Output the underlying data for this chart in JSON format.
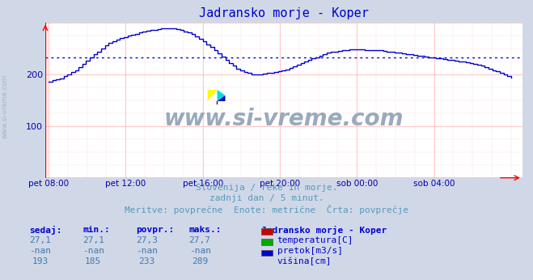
{
  "title": "Jadransko morje - Koper",
  "title_color": "#0000cc",
  "bg_color": "#d0d8e8",
  "plot_bg_color": "#ffffff",
  "line_color": "#0000cc",
  "avg_line_color": "#0000cc",
  "grid_color_major": "#ffaaaa",
  "grid_color_minor": "#ffdddd",
  "xlabel_color": "#0000aa",
  "ylabel_color": "#0000aa",
  "ymin": 0,
  "ymax": 300,
  "yticks": [
    100,
    200
  ],
  "avg_value": 233,
  "xtick_labels": [
    "pet 08:00",
    "pet 12:00",
    "pet 16:00",
    "pet 20:00",
    "sob 00:00",
    "sob 04:00"
  ],
  "subtitle1": "Slovenija / reke in morje.",
  "subtitle2": "zadnji dan / 5 minut.",
  "subtitle3": "Meritve: povprečne  Enote: metrične  Črta: povprečje",
  "subtitle_color": "#5599bb",
  "table_header_color": "#0000cc",
  "table_value_color": "#4477aa",
  "watermark_text": "www.si-vreme.com",
  "watermark_color": "#99aabb",
  "legend_title": "Jadransko morje - Koper",
  "legend_items": [
    {
      "label": "temperatura[C]",
      "color": "#cc0000"
    },
    {
      "label": "pretok[m3/s]",
      "color": "#00aa00"
    },
    {
      "label": "višina[cm]",
      "color": "#0000cc"
    }
  ],
  "table_cols": [
    "sedaj:",
    "min.:",
    "povpr.:",
    "maks.:"
  ],
  "table_rows": [
    [
      "27,1",
      "27,1",
      "27,3",
      "27,7"
    ],
    [
      "-nan",
      "-nan",
      "-nan",
      "-nan"
    ],
    [
      "193",
      "185",
      "233",
      "289"
    ]
  ],
  "y_data": [
    185,
    188,
    190,
    192,
    196,
    200,
    204,
    208,
    214,
    220,
    226,
    232,
    238,
    244,
    250,
    255,
    260,
    264,
    267,
    270,
    272,
    274,
    276,
    278,
    280,
    282,
    284,
    285,
    286,
    287,
    288,
    289,
    289,
    288,
    287,
    285,
    283,
    280,
    277,
    273,
    269,
    264,
    258,
    252,
    246,
    240,
    234,
    228,
    222,
    216,
    211,
    207,
    204,
    202,
    200,
    200,
    200,
    201,
    202,
    203,
    204,
    205,
    207,
    209,
    212,
    215,
    218,
    221,
    224,
    227,
    230,
    233,
    236,
    239,
    241,
    243,
    244,
    245,
    246,
    247,
    248,
    248,
    248,
    248,
    247,
    247,
    247,
    246,
    246,
    245,
    244,
    243,
    242,
    241,
    240,
    239,
    238,
    237,
    236,
    235,
    234,
    233,
    232,
    231,
    230,
    229,
    228,
    227,
    226,
    225,
    224,
    223,
    222,
    220,
    218,
    216,
    214,
    211,
    208,
    205,
    202,
    199,
    196,
    193
  ]
}
